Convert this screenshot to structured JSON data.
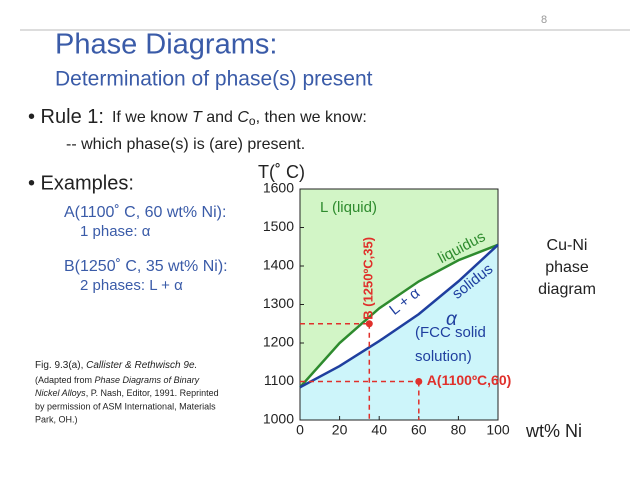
{
  "slide": {
    "number": "8",
    "title": "Phase Diagrams:",
    "subtitle": "Determination of phase(s) present",
    "rule_label": "• Rule 1:",
    "rule_text": [
      "If we know ",
      "T",
      " and ",
      "C",
      "o",
      ", then we know:"
    ],
    "rule_sub": "-- which phase(s) is (are) present.",
    "examples_label": "• Examples:",
    "example_a": [
      "A(1100˚ C, 60 wt% Ni):",
      "1 phase:   α"
    ],
    "example_b": [
      "B(1250˚ C, 35 wt% Ni):",
      "2 phases: L + α"
    ],
    "caption": [
      "Fig. 9.3(a), ",
      "Callister & Rethwisch 9e.",
      "(Adapted from ",
      "Phase Diagrams of Binary",
      "Nickel Alloys",
      ", P. Nash, Editor, 1991. Reprinted",
      "by permission of ASM International, Materials",
      "Park, OH.)"
    ]
  },
  "chart_data": {
    "type": "phase-diagram",
    "y_label": "T(˚ C)",
    "x_label": "wt% Ni",
    "xlim": [
      0,
      100
    ],
    "ylim": [
      1000,
      1600
    ],
    "xticks": [
      0,
      20,
      40,
      60,
      80,
      100
    ],
    "yticks": [
      1000,
      1100,
      1200,
      1300,
      1400,
      1500,
      1600
    ],
    "series": [
      {
        "name": "liquidus",
        "color": "#2e8b2e",
        "x": [
          0,
          20,
          40,
          60,
          80,
          100
        ],
        "values": [
          1085,
          1200,
          1290,
          1360,
          1415,
          1455
        ]
      },
      {
        "name": "solidus",
        "color": "#1f3f9f",
        "x": [
          0,
          20,
          40,
          60,
          80,
          100
        ],
        "values": [
          1085,
          1140,
          1205,
          1275,
          1360,
          1455
        ]
      }
    ],
    "regions": [
      "L (liquid)",
      "L + α",
      "α",
      "(FCC solid",
      "solution)"
    ],
    "points": [
      {
        "label": "A(1100ºC,60)",
        "x": 60,
        "y": 1100
      },
      {
        "label": "B (1250ºC,35)",
        "x": 35,
        "y": 1250
      }
    ],
    "side_label": [
      "Cu-Ni",
      "phase",
      "diagram"
    ]
  }
}
